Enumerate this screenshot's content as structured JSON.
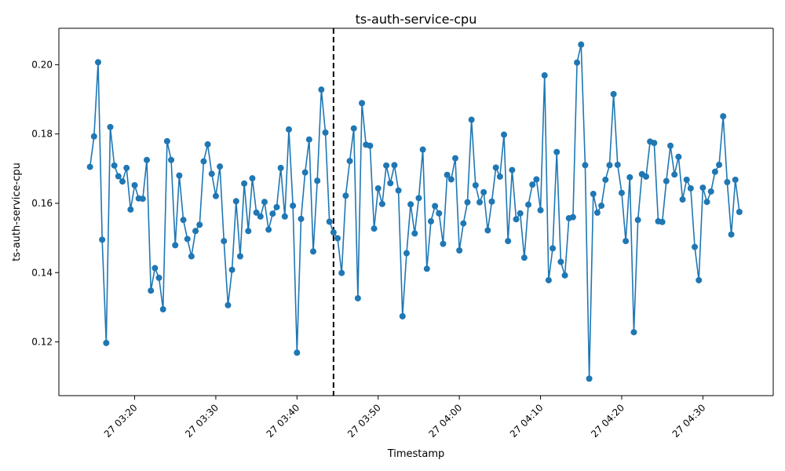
{
  "chart_data": {
    "type": "line",
    "title": "ts-auth-service-cpu",
    "xlabel": "Timestamp",
    "ylabel": "ts-auth-service-cpu",
    "x_start": "2024-01-27T03:14:30",
    "x_step_seconds": 30,
    "xlim": [
      "2024-01-27T03:10:40",
      "2024-01-27T04:38:40"
    ],
    "ylim": [
      0.1045,
      0.2105
    ],
    "x_ticks": [
      {
        "t": "2024-01-27T03:20:00",
        "label": "27 03:20"
      },
      {
        "t": "2024-01-27T03:30:00",
        "label": "27 03:30"
      },
      {
        "t": "2024-01-27T03:40:00",
        "label": "27 03:40"
      },
      {
        "t": "2024-01-27T03:50:00",
        "label": "27 03:50"
      },
      {
        "t": "2024-01-27T04:00:00",
        "label": "27 04:00"
      },
      {
        "t": "2024-01-27T04:10:00",
        "label": "27 04:10"
      },
      {
        "t": "2024-01-27T04:20:00",
        "label": "27 04:20"
      },
      {
        "t": "2024-01-27T04:30:00",
        "label": "27 04:30"
      }
    ],
    "y_ticks": [
      0.12,
      0.14,
      0.16,
      0.18,
      0.2
    ],
    "y_tick_labels": [
      "0.12",
      "0.14",
      "0.16",
      "0.18",
      "0.20"
    ],
    "vline": {
      "t": "2024-01-27T03:44:30",
      "style": "dashed",
      "color": "#000000"
    },
    "series": [
      {
        "color": "#1f77b4",
        "marker": "circle",
        "values": [
          0.1705,
          0.1793,
          0.2007,
          0.1495,
          0.1197,
          0.182,
          0.1709,
          0.1678,
          0.1663,
          0.1702,
          0.1582,
          0.1652,
          0.1614,
          0.1613,
          0.1725,
          0.1348,
          0.1413,
          0.1385,
          0.1294,
          0.1779,
          0.1725,
          0.1479,
          0.168,
          0.1552,
          0.1497,
          0.1447,
          0.152,
          0.1538,
          0.1721,
          0.177,
          0.1685,
          0.1621,
          0.1706,
          0.1491,
          0.1306,
          0.1408,
          0.1606,
          0.1447,
          0.1657,
          0.152,
          0.1672,
          0.1573,
          0.1562,
          0.1604,
          0.1524,
          0.157,
          0.1589,
          0.1702,
          0.1562,
          0.1813,
          0.1593,
          0.1169,
          0.1555,
          0.1689,
          0.1784,
          0.1461,
          0.1665,
          0.1928,
          0.1804,
          0.1547,
          0.1516,
          0.1499,
          0.1399,
          0.1622,
          0.1722,
          0.1816,
          0.1326,
          0.1889,
          0.1769,
          0.1766,
          0.1527,
          0.1643,
          0.1598,
          0.1709,
          0.1658,
          0.171,
          0.1637,
          0.1274,
          0.1456,
          0.1597,
          0.1513,
          0.1615,
          0.1755,
          0.1411,
          0.1548,
          0.1592,
          0.1571,
          0.1483,
          0.1682,
          0.1669,
          0.173,
          0.1464,
          0.1542,
          0.1603,
          0.1841,
          0.1652,
          0.1603,
          0.1632,
          0.1522,
          0.1605,
          0.1703,
          0.1677,
          0.1798,
          0.1491,
          0.1696,
          0.1554,
          0.1571,
          0.1443,
          0.1596,
          0.1654,
          0.1669,
          0.158,
          0.1969,
          0.1378,
          0.147,
          0.1748,
          0.1431,
          0.1392,
          0.1557,
          0.156,
          0.2006,
          0.2058,
          0.171,
          0.1094,
          0.1627,
          0.1573,
          0.1593,
          0.1668,
          0.171,
          0.1915,
          0.1711,
          0.163,
          0.1491,
          0.1675,
          0.1228,
          0.1552,
          0.1684,
          0.1677,
          0.1778,
          0.1774,
          0.1548,
          0.1546,
          0.1664,
          0.1766,
          0.1683,
          0.1734,
          0.1611,
          0.1668,
          0.1643,
          0.1474,
          0.1378,
          0.1645,
          0.1604,
          0.1634,
          0.1691,
          0.1711,
          0.1851,
          0.1661,
          0.151,
          0.1668,
          0.1575
        ]
      }
    ]
  }
}
